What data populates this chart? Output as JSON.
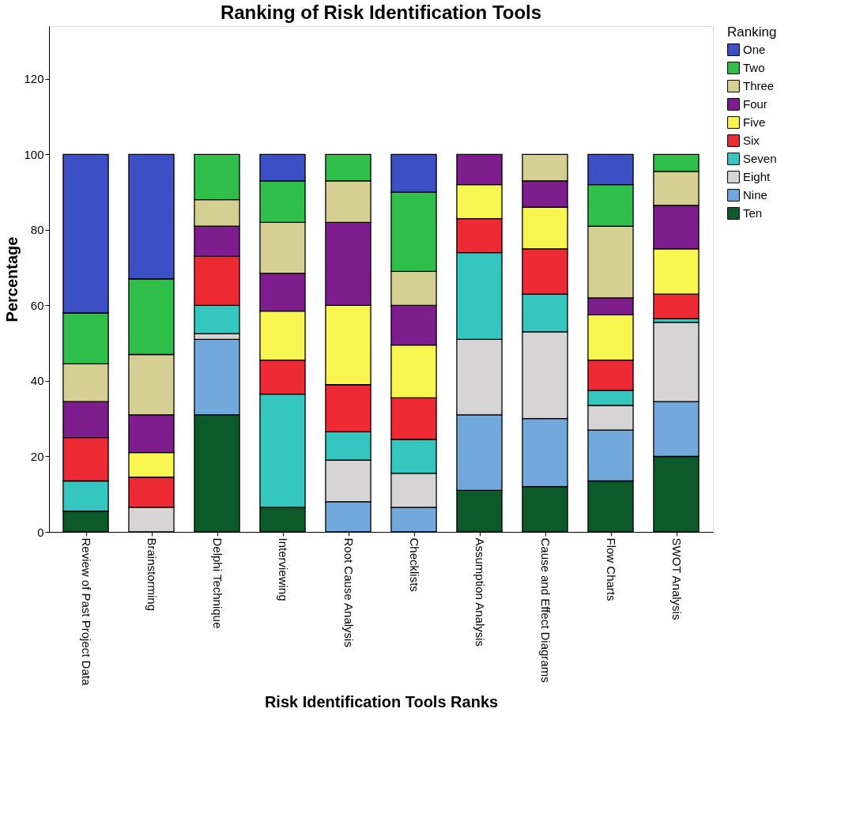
{
  "chart_data": {
    "type": "bar",
    "stacked": true,
    "title": "Ranking of Risk Identification Tools",
    "xlabel": "Risk Identification Tools Ranks",
    "ylabel": "Percentage",
    "legend_title": "Ranking",
    "legend": "right",
    "grid": false,
    "categories": [
      "Review of Past Project Data",
      "Brainstorming",
      "Delphi Technique",
      "Interviewing",
      "Root Cause Analysis",
      "Checklists",
      "Assumption Analysis",
      "Cause and Effect Diagrams",
      "Flow Charts",
      "SWOT Analysis"
    ],
    "ylim": [
      0,
      134
    ],
    "yticks": [
      0,
      20,
      40,
      60,
      80,
      100,
      120
    ],
    "series": [
      {
        "name": "Ten",
        "color": "#0c5a2a",
        "values": [
          5.5,
          null,
          31,
          6.5,
          null,
          null,
          11,
          12,
          13.5,
          20
        ]
      },
      {
        "name": "Nine",
        "color": "#72a8dc",
        "values": [
          null,
          null,
          20,
          null,
          8,
          6.5,
          20,
          18,
          13.5,
          14.5
        ]
      },
      {
        "name": "Eight",
        "color": "#d7d4d6",
        "values": [
          null,
          6.5,
          1.5,
          null,
          11,
          9,
          20,
          23,
          6.5,
          21
        ]
      },
      {
        "name": "Seven",
        "color": "#36c6c0",
        "values": [
          8,
          null,
          7.5,
          30,
          7.5,
          9,
          23,
          10,
          4,
          1
        ]
      },
      {
        "name": "Six",
        "color": "#ee2a35",
        "values": [
          11.5,
          8,
          13,
          9,
          12.5,
          11,
          9,
          12,
          8,
          6.5
        ]
      },
      {
        "name": "Five",
        "color": "#f8f550",
        "values": [
          null,
          6.5,
          null,
          13,
          21,
          14,
          9,
          11,
          12,
          12
        ]
      },
      {
        "name": "Four",
        "color": "#7e1e8e",
        "values": [
          9.5,
          10,
          8,
          10,
          22,
          10.5,
          8,
          7,
          4.5,
          11.5
        ]
      },
      {
        "name": "Three",
        "color": "#d6cf93",
        "values": [
          10,
          16,
          7,
          13.5,
          11,
          9,
          null,
          7,
          19,
          9
        ]
      },
      {
        "name": "Two",
        "color": "#2fbf4a",
        "values": [
          13.5,
          20,
          12,
          11,
          7,
          21,
          null,
          null,
          11,
          4.5
        ]
      },
      {
        "name": "One",
        "color": "#3c4fc4",
        "values": [
          42,
          33,
          null,
          7,
          null,
          10,
          null,
          null,
          8,
          null
        ]
      }
    ]
  }
}
